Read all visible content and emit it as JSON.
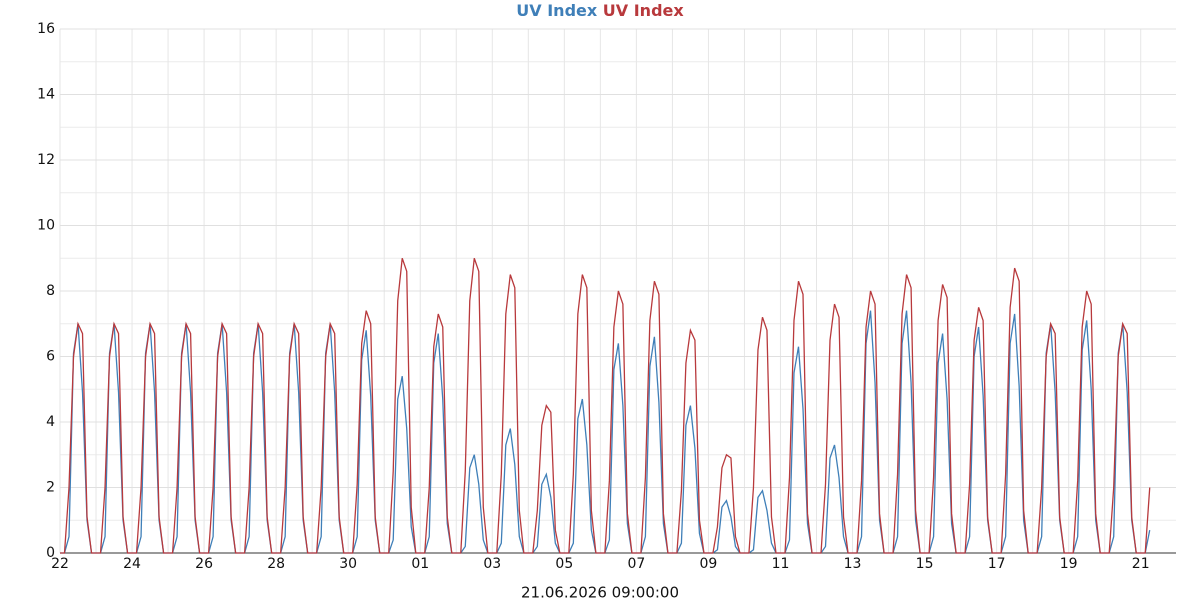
{
  "chart_data": {
    "type": "line",
    "xlabel": "21.06.2026 09:00:00",
    "categories": [
      "22",
      null,
      null,
      null,
      null,
      null,
      null,
      null,
      null,
      null,
      null,
      null,
      null,
      null,
      null,
      null,
      "24",
      null,
      null,
      null,
      null,
      null,
      null,
      null,
      null,
      null,
      null,
      null,
      null,
      null,
      null,
      null,
      "26",
      null,
      null,
      null,
      null,
      null,
      null,
      null,
      null,
      null,
      null,
      null,
      null,
      null,
      null,
      null,
      "28",
      null,
      null,
      null,
      null,
      null,
      null,
      null,
      null,
      null,
      null,
      null,
      null,
      null,
      null,
      null,
      "30",
      null,
      null,
      null,
      null,
      null,
      null,
      null,
      null,
      null,
      null,
      null,
      null,
      null,
      null,
      null,
      "01",
      null,
      null,
      null,
      null,
      null,
      null,
      null,
      null,
      null,
      null,
      null,
      null,
      null,
      null,
      null,
      "03",
      null,
      null,
      null,
      null,
      null,
      null,
      null,
      null,
      null,
      null,
      null,
      null,
      null,
      null,
      null,
      "05",
      null,
      null,
      null,
      null,
      null,
      null,
      null,
      null,
      null,
      null,
      null,
      null,
      null,
      null,
      null,
      "07",
      null,
      null,
      null,
      null,
      null,
      null,
      null,
      null,
      null,
      null,
      null,
      null,
      null,
      null,
      null,
      "09",
      null,
      null,
      null,
      null,
      null,
      null,
      null,
      null,
      null,
      null,
      null,
      null,
      null,
      null,
      null,
      "11",
      null,
      null,
      null,
      null,
      null,
      null,
      null,
      null,
      null,
      null,
      null,
      null,
      null,
      null,
      null,
      "13",
      null,
      null,
      null,
      null,
      null,
      null,
      null,
      null,
      null,
      null,
      null,
      null,
      null,
      null,
      null,
      "15",
      null,
      null,
      null,
      null,
      null,
      null,
      null,
      null,
      null,
      null,
      null,
      null,
      null,
      null,
      null,
      "17",
      null,
      null,
      null,
      null,
      null,
      null,
      null,
      null,
      null,
      null,
      null,
      null,
      null,
      null,
      null,
      "19",
      null,
      null,
      null,
      null,
      null,
      null,
      null,
      null,
      null,
      null,
      null,
      null,
      null,
      null,
      null,
      "21",
      null,
      null
    ],
    "series": [
      {
        "name": "UV Index",
        "color": "#3f7fb8",
        "values": [
          0,
          0,
          0.5,
          6.1,
          7,
          4.9,
          1,
          0,
          0,
          0,
          0.5,
          6.1,
          7,
          4.9,
          1,
          0,
          0,
          0,
          0.5,
          6.1,
          7,
          4.9,
          1,
          0,
          0,
          0,
          0.5,
          6.1,
          7,
          4.9,
          1,
          0,
          0,
          0,
          0.5,
          6.1,
          7,
          4.9,
          1,
          0,
          0,
          0,
          0.5,
          6.1,
          7,
          4.9,
          1,
          0,
          0,
          0,
          0.5,
          6.1,
          7,
          4.9,
          1,
          0,
          0,
          0,
          0.5,
          6.1,
          7,
          4.9,
          1,
          0,
          0,
          0,
          0.5,
          5.9,
          6.8,
          4.8,
          1,
          0,
          0,
          0,
          0.4,
          4.7,
          5.4,
          3.8,
          0.8,
          0,
          0,
          0,
          0.5,
          5.8,
          6.7,
          4.7,
          0.9,
          0,
          0,
          0,
          0.2,
          2.6,
          3,
          2.1,
          0.4,
          0,
          0,
          0,
          0.3,
          3.3,
          3.8,
          2.7,
          0.5,
          0,
          0,
          0,
          0.2,
          2.1,
          2.4,
          1.7,
          0.3,
          0,
          0,
          0,
          0.3,
          4.1,
          4.7,
          3.3,
          0.7,
          0,
          0,
          0,
          0.4,
          5.6,
          6.4,
          4.5,
          0.9,
          0,
          0,
          0,
          0.5,
          5.7,
          6.6,
          4.6,
          0.9,
          0,
          0,
          0,
          0.3,
          3.9,
          4.5,
          3.2,
          0.6,
          0,
          0,
          0,
          0.1,
          1.4,
          1.6,
          1.1,
          0.2,
          0,
          0,
          0,
          0.1,
          1.7,
          1.9,
          1.3,
          0.3,
          0,
          0,
          0,
          0.4,
          5.5,
          6.3,
          4.4,
          0.9,
          0,
          0,
          0,
          0.2,
          2.9,
          3.3,
          2.3,
          0.5,
          0,
          0,
          0,
          0.5,
          6.4,
          7.4,
          5.2,
          1,
          0,
          0,
          0,
          0.5,
          6.4,
          7.4,
          5.2,
          1,
          0,
          0,
          0,
          0.5,
          5.8,
          6.7,
          4.7,
          0.9,
          0,
          0,
          0,
          0.5,
          6,
          6.9,
          4.8,
          1,
          0,
          0,
          0,
          0.5,
          6.4,
          7.3,
          5.1,
          1,
          0,
          0,
          0,
          0.5,
          6.1,
          7,
          4.9,
          1,
          0,
          0,
          0,
          0.5,
          6.2,
          7.1,
          5,
          1,
          0,
          0,
          0,
          0.5,
          6.1,
          7,
          4.9,
          1,
          0,
          0,
          0,
          0.7
        ]
      },
      {
        "name": "UV Index",
        "color": "#b8393c",
        "values": [
          0,
          0,
          2,
          6,
          7,
          6.7,
          1.1,
          0,
          0,
          0,
          2,
          6,
          7,
          6.7,
          1.1,
          0,
          0,
          0,
          2,
          6,
          7,
          6.7,
          1.1,
          0,
          0,
          0,
          2,
          6,
          7,
          6.7,
          1.1,
          0,
          0,
          0,
          2,
          6,
          7,
          6.7,
          1.1,
          0,
          0,
          0,
          2,
          6,
          7,
          6.7,
          1.1,
          0,
          0,
          0,
          2,
          6,
          7,
          6.7,
          1.1,
          0,
          0,
          0,
          2,
          6,
          7,
          6.7,
          1.1,
          0,
          0,
          0,
          2.1,
          6.4,
          7.4,
          7,
          1.1,
          0,
          0,
          0,
          2.5,
          7.7,
          9,
          8.6,
          1.4,
          0,
          0,
          0,
          2,
          6.3,
          7.3,
          6.9,
          1.1,
          0,
          0,
          0,
          2.5,
          7.7,
          9,
          8.6,
          1.4,
          0,
          0,
          0,
          2.4,
          7.3,
          8.5,
          8.1,
          1.3,
          0,
          0,
          0,
          1.3,
          3.9,
          4.5,
          4.3,
          0.7,
          0,
          0,
          0,
          2.4,
          7.3,
          8.5,
          8.1,
          1.3,
          0,
          0,
          0,
          2.2,
          6.9,
          8,
          7.6,
          1.2,
          0,
          0,
          0,
          2.3,
          7.1,
          8.3,
          7.9,
          1.2,
          0,
          0,
          0,
          1.9,
          5.8,
          6.8,
          6.5,
          1,
          0,
          0,
          0,
          0.8,
          2.6,
          3,
          2.9,
          0.5,
          0,
          0,
          0,
          2,
          6.2,
          7.2,
          6.8,
          1.1,
          0,
          0,
          0,
          2.3,
          7.1,
          8.3,
          7.9,
          1.2,
          0,
          0,
          0,
          2.1,
          6.5,
          7.6,
          7.2,
          1.1,
          0,
          0,
          0,
          2.2,
          6.9,
          8,
          7.6,
          1.2,
          0,
          0,
          0,
          2.4,
          7.3,
          8.5,
          8.1,
          1.3,
          0,
          0,
          0,
          2.3,
          7.1,
          8.2,
          7.8,
          1.2,
          0,
          0,
          0,
          2.1,
          6.5,
          7.5,
          7.1,
          1.1,
          0,
          0,
          0,
          2.4,
          7.5,
          8.7,
          8.3,
          1.3,
          0,
          0,
          0,
          2,
          6,
          7,
          6.7,
          1.1,
          0,
          0,
          0,
          2.2,
          6.9,
          8,
          7.6,
          1.2,
          0,
          0,
          0,
          2,
          6,
          7,
          6.7,
          1.1,
          0,
          0,
          0,
          2
        ]
      }
    ],
    "ylim": [
      0,
      16
    ],
    "yticks": [
      0,
      2,
      4,
      6,
      8,
      10,
      12,
      14,
      16
    ],
    "grid": true
  }
}
